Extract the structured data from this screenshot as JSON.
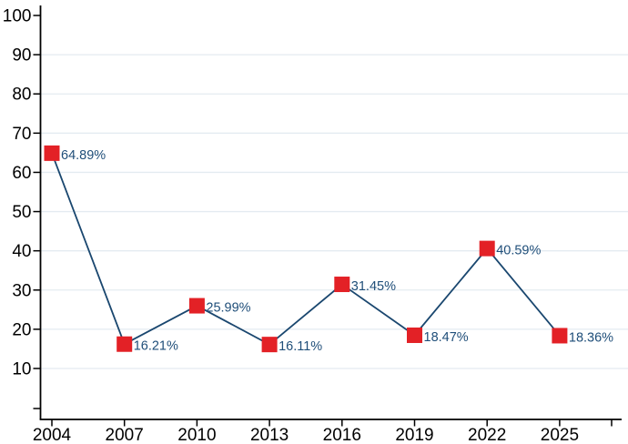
{
  "chart_data": {
    "type": "line",
    "title": "",
    "xlabel": "",
    "ylabel": "",
    "x": [
      2004,
      2007,
      2010,
      2013,
      2016,
      2019,
      2022,
      2025
    ],
    "values": [
      64.89,
      16.21,
      25.99,
      16.11,
      31.45,
      18.47,
      40.59,
      18.36
    ],
    "point_labels": [
      "64.89%",
      "16.21%",
      "25.99%",
      "16.11%",
      "31.45%",
      "18.47%",
      "40.59%",
      "18.36%"
    ],
    "x_tick_labels": [
      "2004",
      "2007",
      "2010",
      "2013",
      "2016",
      "2019",
      "2022",
      "2025"
    ],
    "y_ticks": [
      10,
      20,
      30,
      40,
      50,
      60,
      70,
      80,
      90,
      100
    ],
    "y_tick_labels": [
      "10",
      "20",
      "30",
      "40",
      "50",
      "60",
      "70",
      "80",
      "90",
      "100"
    ],
    "ylim": [
      10,
      100
    ],
    "grid": "horizontal",
    "gridline_values": [
      10,
      20,
      30,
      40,
      50,
      60,
      70,
      80,
      90
    ],
    "marker_shape": "square",
    "legend": "none",
    "colors": {
      "line": "#1a476f",
      "marker": "#e32126",
      "point_label": "#1f4e79",
      "grid": "#e4ebf1",
      "axis": "#000000",
      "background": "#ffffff"
    }
  }
}
